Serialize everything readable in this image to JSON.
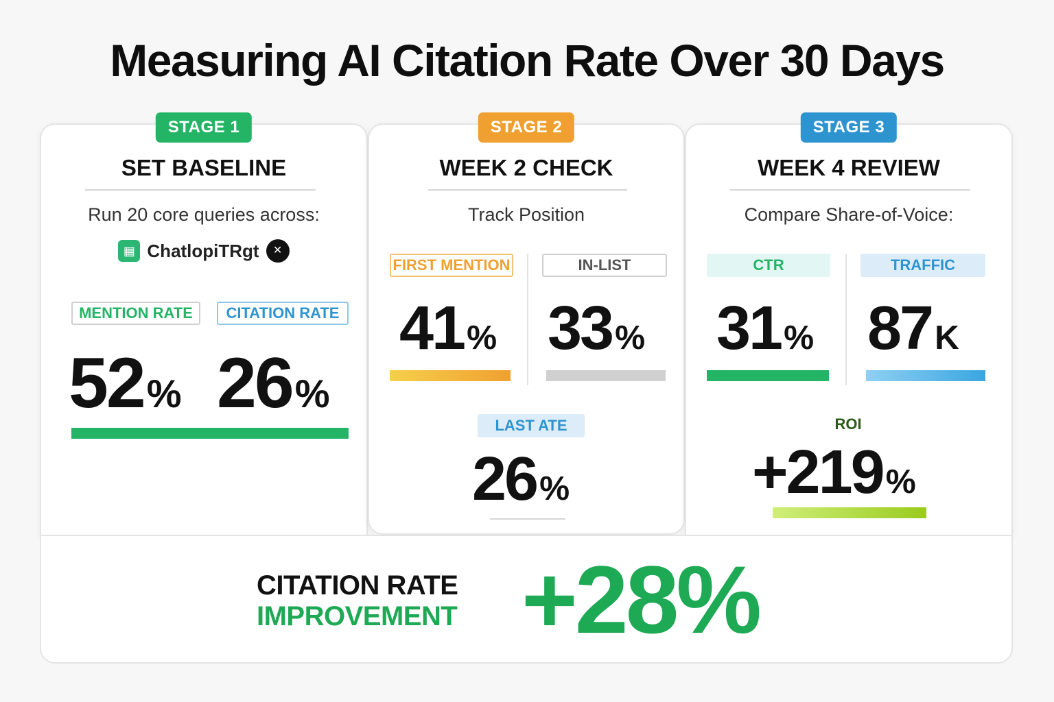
{
  "title": "Measuring AI Citation Rate Over 30 Days",
  "colors": {
    "green": "#23b565",
    "orange": "#f0a030",
    "blue": "#2e94d0",
    "lime": "#9acb1e"
  },
  "stage1": {
    "badge": "STAGE 1",
    "title": "SET BASELINE",
    "subtitle": "Run 20 core queries across:",
    "logo_text": "ChatlopiTRgt",
    "mention": {
      "label": "MENTION RATE",
      "value": "52",
      "unit": "%",
      "progress": 0.5
    },
    "citation": {
      "label": "CITATION RATE",
      "value": "26",
      "unit": "%",
      "progress": 0.5
    }
  },
  "stage2": {
    "badge": "STAGE 2",
    "title": "WEEK 2 CHECK",
    "subtitle": "Track Position",
    "first": {
      "label": "FIRST MENTION",
      "value": "41",
      "unit": "%"
    },
    "inlist": {
      "label": "IN-LIST",
      "value": "33",
      "unit": "%"
    },
    "last": {
      "label": "LAST ATE",
      "value": "26",
      "unit": "%"
    }
  },
  "stage3": {
    "badge": "STAGE 3",
    "title": "WEEK 4 REVIEW",
    "subtitle": "Compare Share-of-Voice:",
    "ctr": {
      "label": "CTR",
      "value": "31",
      "unit": "%"
    },
    "traffic": {
      "label": "TRAFFIC",
      "value": "87",
      "unit": "K"
    },
    "roi": {
      "label": "ROI",
      "value": "+219",
      "unit": "%"
    }
  },
  "summary": {
    "line1": "CITATION RATE",
    "line2": "IMPROVEMENT",
    "value": "+28%"
  }
}
